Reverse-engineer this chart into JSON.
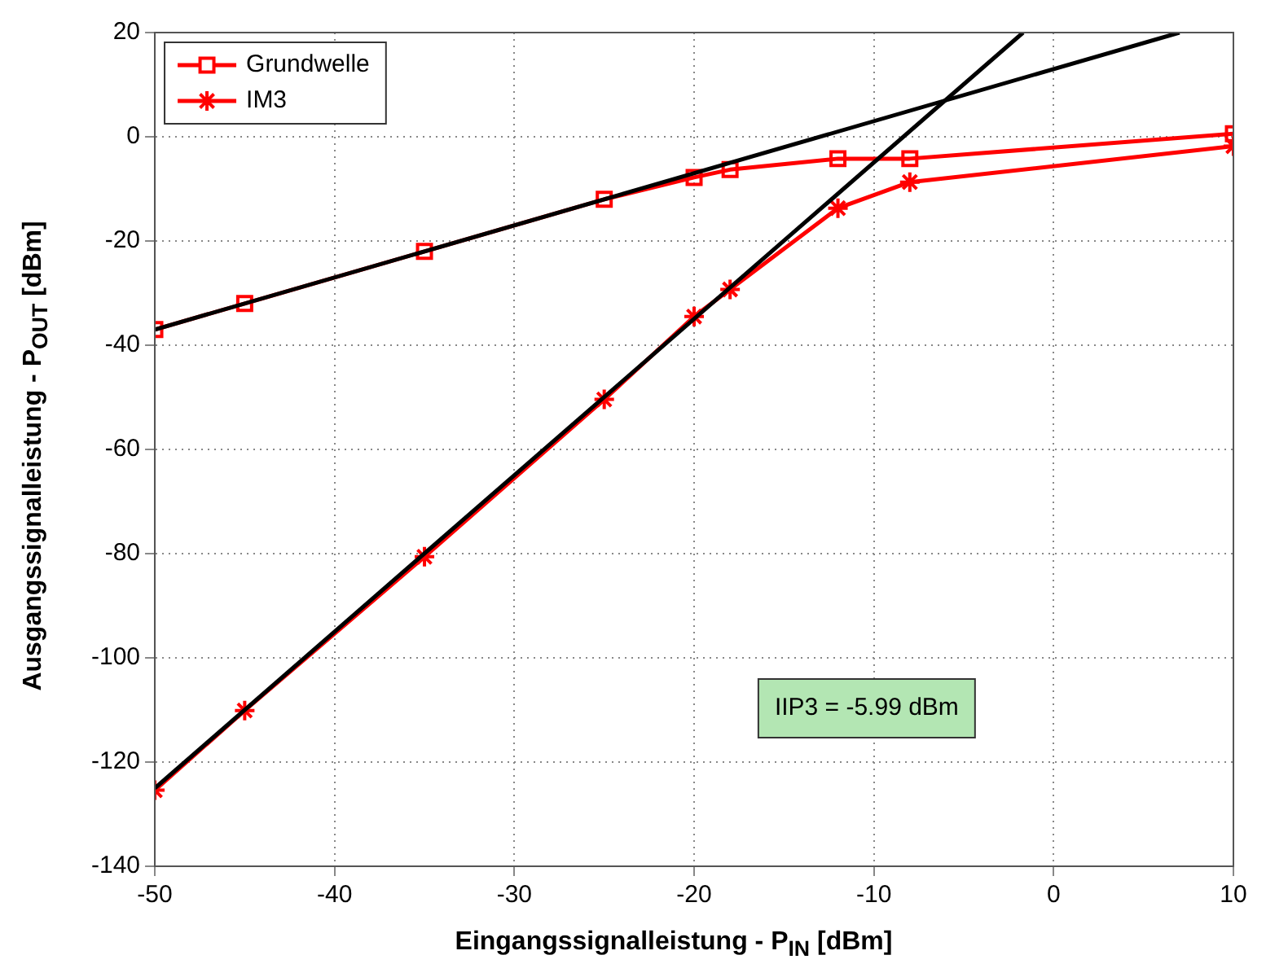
{
  "chart_data": {
    "type": "line",
    "xlabel": "Eingangssignalleistung  -  P$_{IN}$ [dBm]",
    "ylabel": "Ausgangssignalleistung  -  P$_{OUT}$ [dBm]",
    "xlim": [
      -50,
      10
    ],
    "xticks": [
      -50,
      -40,
      -30,
      -20,
      -10,
      0,
      10
    ],
    "ylim": [
      -140,
      20
    ],
    "yticks": [
      -140,
      -120,
      -100,
      -80,
      -60,
      -40,
      -20,
      0,
      20
    ],
    "grid": true,
    "legend": "top left",
    "series": [
      {
        "name": "Grundwelle",
        "color": "#ff0000",
        "marker": "square",
        "x": [
          -50,
          -45,
          -35,
          -25,
          -20,
          -18,
          -12,
          -8,
          10
        ],
        "values": [
          -37,
          -32,
          -22,
          -12,
          -7.8,
          -6.3,
          -4.2,
          -4.2,
          0.6
        ]
      },
      {
        "name": "IM3",
        "color": "#ff0000",
        "marker": "cross",
        "x": [
          -50,
          -45,
          -35,
          -25,
          -20,
          -18,
          -12,
          -8,
          10
        ],
        "values": [
          -125.4,
          -110.1,
          -80.6,
          -50.4,
          -34.5,
          -29.3,
          -13.7,
          -8.7,
          -1.8
        ]
      },
      {
        "type": "line",
        "color": "#000000",
        "marker": "none",
        "x": [
          -50,
          7
        ],
        "values": [
          -37,
          20
        ]
      },
      {
        "type": "line",
        "color": "#000000",
        "marker": "none",
        "x": [
          -50,
          -1.7
        ],
        "values": [
          -125,
          20
        ]
      }
    ],
    "annotations": [
      "IIP3 = -5.99 dBm"
    ]
  }
}
